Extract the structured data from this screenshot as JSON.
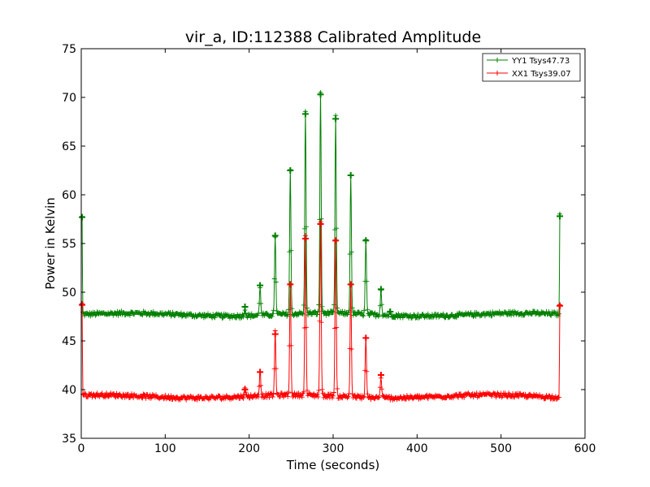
{
  "chart_data": {
    "type": "line",
    "title": "vir_a, ID:112388 Calibrated Amplitude",
    "xlabel": "Time (seconds)",
    "ylabel": "Power in Kelvin",
    "xlim": [
      0,
      600
    ],
    "ylim": [
      35,
      75
    ],
    "xticks": [
      0,
      100,
      200,
      300,
      400,
      500,
      600
    ],
    "yticks": [
      35,
      40,
      45,
      50,
      55,
      60,
      65,
      70,
      75
    ],
    "legend_placement": "top-right",
    "marker": "+",
    "series": [
      {
        "name": "YY1 Tsys47.73",
        "color": "#008000",
        "baseline": 47.7,
        "spikes": [
          {
            "t": 1,
            "peak": 57.7
          },
          {
            "t": 195,
            "peak": 48.5
          },
          {
            "t": 213,
            "peak": 50.7
          },
          {
            "t": 231,
            "peak": 55.8
          },
          {
            "t": 249,
            "peak": 62.5
          },
          {
            "t": 267,
            "peak": 68.3
          },
          {
            "t": 285,
            "peak": 70.3
          },
          {
            "t": 303,
            "peak": 67.8
          },
          {
            "t": 321,
            "peak": 62.0
          },
          {
            "t": 339,
            "peak": 55.3
          },
          {
            "t": 357,
            "peak": 50.3
          },
          {
            "t": 368,
            "peak": 48.0
          },
          {
            "t": 570,
            "peak": 57.8
          }
        ]
      },
      {
        "name": "XX1 Tsys39.07",
        "color": "#ff0000",
        "baseline": 39.3,
        "spikes": [
          {
            "t": 1,
            "peak": 48.7
          },
          {
            "t": 195,
            "peak": 40.0
          },
          {
            "t": 213,
            "peak": 41.8
          },
          {
            "t": 231,
            "peak": 45.7
          },
          {
            "t": 249,
            "peak": 50.8
          },
          {
            "t": 267,
            "peak": 55.5
          },
          {
            "t": 285,
            "peak": 57.0
          },
          {
            "t": 303,
            "peak": 55.3
          },
          {
            "t": 321,
            "peak": 50.8
          },
          {
            "t": 339,
            "peak": 45.3
          },
          {
            "t": 357,
            "peak": 41.5
          },
          {
            "t": 570,
            "peak": 48.6
          }
        ]
      }
    ]
  }
}
